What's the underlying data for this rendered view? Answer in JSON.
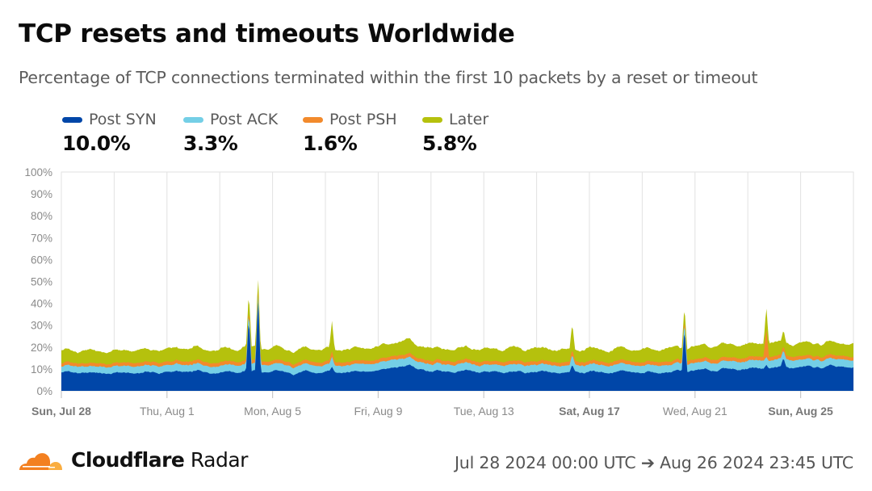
{
  "header": {
    "title": "TCP resets and timeouts Worldwide",
    "subtitle": "Percentage of TCP connections terminated within the first 10 packets by a reset or timeout"
  },
  "legend": [
    {
      "label": "Post SYN",
      "value": "10.0%",
      "color": "#0046a8"
    },
    {
      "label": "Post ACK",
      "value": "3.3%",
      "color": "#74cfe6"
    },
    {
      "label": "Post PSH",
      "value": "1.6%",
      "color": "#f28a2c"
    },
    {
      "label": "Later",
      "value": "5.8%",
      "color": "#b5c10d"
    }
  ],
  "footer": {
    "brand_bold": "Cloudflare",
    "brand_light": " Radar",
    "date_range": "Jul 28 2024 00:00 UTC ➔ Aug 26 2024 23:45 UTC"
  },
  "chart_data": {
    "type": "area",
    "stacked": true,
    "title": "TCP resets and timeouts Worldwide",
    "subtitle": "Percentage of TCP connections terminated within the first 10 packets by a reset or timeout",
    "xlabel": "",
    "ylabel": "",
    "ylim": [
      0,
      100
    ],
    "y_ticks": [
      "0%",
      "10%",
      "20%",
      "30%",
      "40%",
      "50%",
      "60%",
      "70%",
      "80%",
      "90%",
      "100%"
    ],
    "x_ticks": [
      {
        "label": "Sun, Jul 28",
        "day": 0,
        "bold": true
      },
      {
        "label": "Thu, Aug 1",
        "day": 4,
        "bold": false
      },
      {
        "label": "Mon, Aug 5",
        "day": 8,
        "bold": false
      },
      {
        "label": "Fri, Aug 9",
        "day": 12,
        "bold": false
      },
      {
        "label": "Tue, Aug 13",
        "day": 16,
        "bold": false
      },
      {
        "label": "Sat, Aug 17",
        "day": 20,
        "bold": true
      },
      {
        "label": "Wed, Aug 21",
        "day": 24,
        "bold": false
      },
      {
        "label": "Sun, Aug 25",
        "day": 28,
        "bold": true
      }
    ],
    "gridline_every_days": 2,
    "x_range": [
      "Jul 28 2024 00:00 UTC",
      "Aug 26 2024 23:45 UTC"
    ],
    "grid": true,
    "legend_position": "top",
    "series_summary": [
      {
        "name": "Post SYN",
        "value": 10.0,
        "color": "#0046a8"
      },
      {
        "name": "Post ACK",
        "value": 3.3,
        "color": "#74cfe6"
      },
      {
        "name": "Post PSH",
        "value": 1.6,
        "color": "#f28a2c"
      },
      {
        "name": "Later",
        "value": 5.8,
        "color": "#b5c10d"
      }
    ],
    "x_days": [
      0,
      1,
      2,
      3,
      4,
      5,
      6,
      7,
      8,
      9,
      10,
      11,
      12,
      13,
      14,
      15,
      16,
      17,
      18,
      19,
      20,
      21,
      22,
      23,
      24,
      25,
      26,
      27,
      28,
      29,
      30
    ],
    "series": [
      {
        "name": "Post SYN",
        "values": [
          8.5,
          8.2,
          8.0,
          8.3,
          8.5,
          8.8,
          8.6,
          9.0,
          8.6,
          8.3,
          8.5,
          8.9,
          9.2,
          11.5,
          9.0,
          8.8,
          8.7,
          8.5,
          8.4,
          8.6,
          8.7,
          8.6,
          8.4,
          8.5,
          9.2,
          9.8,
          10.2,
          10.6,
          10.8,
          10.9,
          10.8
        ]
      },
      {
        "name": "Post ACK",
        "values": [
          2.8,
          2.9,
          3.0,
          3.0,
          3.1,
          3.2,
          3.1,
          3.2,
          3.3,
          3.2,
          3.1,
          3.3,
          3.4,
          3.5,
          3.3,
          3.3,
          3.2,
          3.3,
          3.3,
          3.2,
          3.3,
          3.3,
          3.3,
          3.4,
          3.4,
          3.5,
          3.5,
          3.5,
          3.4,
          3.4,
          3.3
        ]
      },
      {
        "name": "Post PSH",
        "values": [
          1.5,
          1.5,
          1.5,
          1.6,
          1.6,
          1.6,
          1.6,
          1.6,
          1.6,
          1.6,
          1.6,
          1.6,
          1.6,
          1.7,
          1.6,
          1.6,
          1.6,
          1.6,
          1.6,
          1.6,
          1.6,
          1.6,
          1.6,
          1.6,
          1.6,
          1.7,
          1.7,
          1.7,
          1.7,
          1.7,
          1.6
        ]
      },
      {
        "name": "Later",
        "values": [
          5.8,
          5.6,
          5.6,
          5.7,
          5.9,
          5.9,
          5.8,
          5.9,
          5.8,
          5.7,
          5.8,
          5.8,
          5.9,
          6.2,
          5.8,
          5.7,
          5.6,
          5.7,
          5.8,
          5.7,
          5.7,
          5.6,
          5.7,
          5.8,
          5.9,
          6.0,
          6.0,
          6.0,
          5.9,
          5.9,
          5.8
        ]
      }
    ],
    "spikes": [
      {
        "day": 7.1,
        "total": 41,
        "post_syn": 34
      },
      {
        "day": 7.45,
        "total": 50,
        "post_syn": 43
      },
      {
        "day": 10.25,
        "total": 32,
        "post_syn": 11
      },
      {
        "day": 19.35,
        "total": 31,
        "post_syn": 12
      },
      {
        "day": 23.6,
        "total": 37,
        "post_syn": 29
      },
      {
        "day": 26.7,
        "total": 39,
        "post_syn": 12,
        "post_psh_heavy": true
      },
      {
        "day": 27.35,
        "total": 28,
        "post_syn": 15
      }
    ]
  }
}
